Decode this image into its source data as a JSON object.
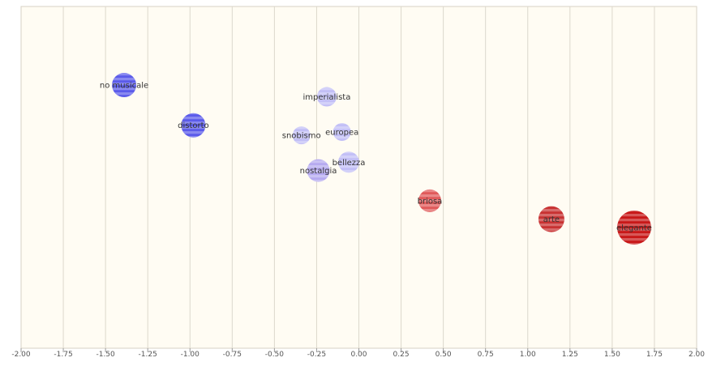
{
  "chart_data": {
    "type": "scatter",
    "title": "",
    "xlabel": "",
    "ylabel": "",
    "xlim": [
      -2.0,
      2.0
    ],
    "grid": "vertical",
    "x_ticks": [
      "-2.00",
      "-1.75",
      "-1.50",
      "-1.25",
      "-1.00",
      "-0.75",
      "-0.50",
      "-0.25",
      "0.00",
      "0.25",
      "0.50",
      "0.75",
      "1.00",
      "1.25",
      "1.50",
      "1.75",
      "2.00"
    ],
    "points": [
      {
        "label": "no musicale",
        "x": -1.39,
        "y": 0.85,
        "size": 15,
        "color": "#5b5bea"
      },
      {
        "label": "distorto",
        "x": -0.98,
        "y": 0.61,
        "size": 15,
        "color": "#5b5bea"
      },
      {
        "label": "imperialista",
        "x": -0.19,
        "y": 0.78,
        "size": 12,
        "color": "#c2bff6"
      },
      {
        "label": "snobismo",
        "x": -0.34,
        "y": 0.55,
        "size": 11,
        "color": "#c2bff6"
      },
      {
        "label": "europea",
        "x": -0.1,
        "y": 0.57,
        "size": 11,
        "color": "#c2bff6"
      },
      {
        "label": "bellezza",
        "x": -0.06,
        "y": 0.39,
        "size": 13,
        "color": "#c2bff6"
      },
      {
        "label": "nostalgia",
        "x": -0.24,
        "y": 0.34,
        "size": 14,
        "color": "#b6aaf0"
      },
      {
        "label": "briosa",
        "x": 0.42,
        "y": 0.16,
        "size": 14,
        "color": "#e05a5a"
      },
      {
        "label": "arte",
        "x": 1.14,
        "y": 0.05,
        "size": 16,
        "color": "#c83232"
      },
      {
        "label": "elegante",
        "x": 1.63,
        "y": 0.0,
        "size": 21,
        "color": "#c81818"
      }
    ]
  }
}
